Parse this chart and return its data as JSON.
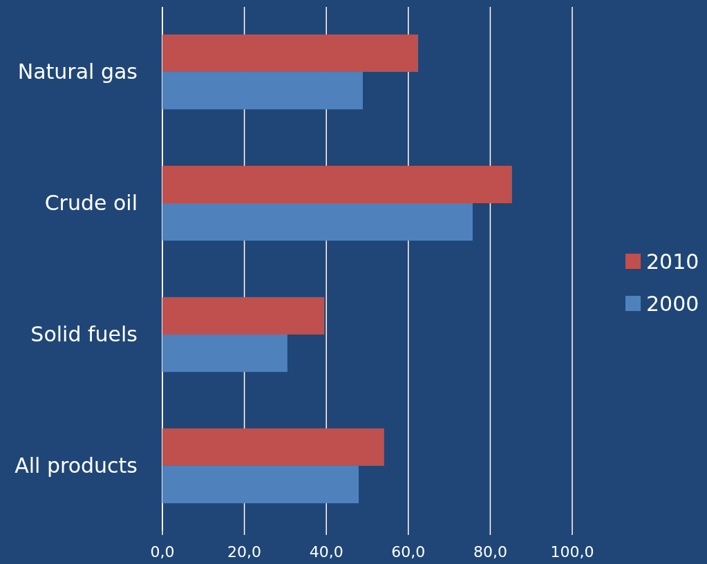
{
  "chart_data": {
    "type": "bar",
    "orientation": "horizontal",
    "categories": [
      "Natural gas",
      "Crude oil",
      "Solid fuels",
      "All products"
    ],
    "series": [
      {
        "name": "2010",
        "color": "#c0504d",
        "values": [
          62.4,
          85.3,
          39.5,
          54.1
        ]
      },
      {
        "name": "2000",
        "color": "#4f81bd",
        "values": [
          48.9,
          75.7,
          30.5,
          47.9
        ]
      }
    ],
    "xlim": [
      0,
      100
    ],
    "xticks": [
      {
        "value": 0,
        "label": "0,0"
      },
      {
        "value": 20,
        "label": "20,0"
      },
      {
        "value": 40,
        "label": "40,0"
      },
      {
        "value": 60,
        "label": "60,0"
      },
      {
        "value": 80,
        "label": "80,0"
      },
      {
        "value": 100,
        "label": "100,0"
      }
    ],
    "grid": "x",
    "legend": "right"
  }
}
